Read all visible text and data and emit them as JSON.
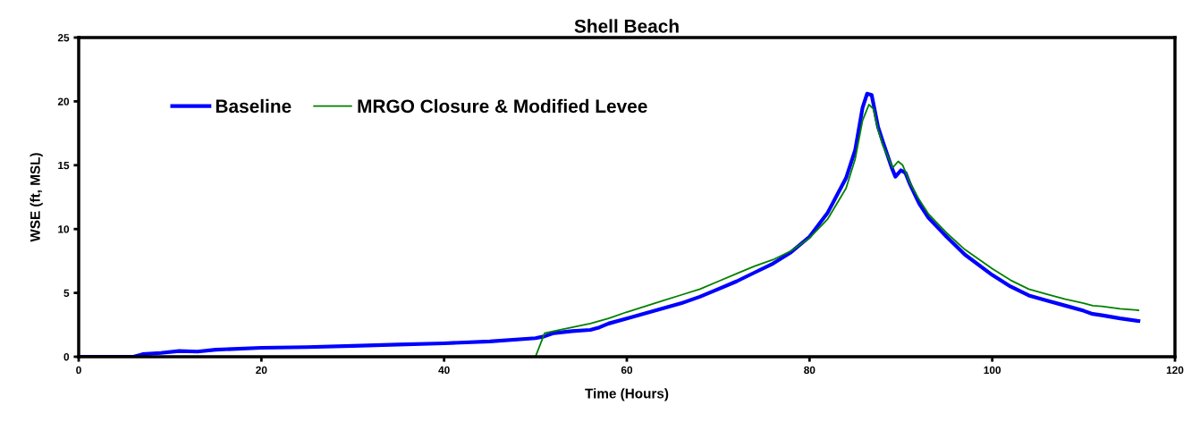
{
  "chart_data": {
    "type": "line",
    "title": "Shell Beach",
    "xlabel": "Time (Hours)",
    "ylabel": "WSE (ft, MSL)",
    "xlim": [
      0,
      120
    ],
    "xticks": [
      0,
      20,
      40,
      60,
      80,
      100,
      120
    ],
    "ylim": [
      0,
      25
    ],
    "yticks": [
      0,
      5,
      10,
      15,
      20,
      25
    ],
    "grid": false,
    "legend": "top left",
    "marker": "none",
    "line_style": "solid",
    "series": [
      {
        "name": "Baseline",
        "color": "#0000ff",
        "x": [
          0,
          6,
          7,
          9,
          11,
          13,
          15,
          20,
          25,
          30,
          35,
          40,
          45,
          50,
          51,
          52,
          54,
          56,
          57,
          58,
          60,
          62,
          64,
          66,
          68,
          70,
          72,
          74,
          76,
          78,
          80,
          82,
          84,
          85,
          85.8,
          86.3,
          86.8,
          87.5,
          88,
          89,
          89.4,
          90,
          90.5,
          91,
          92,
          93,
          95,
          97,
          100,
          102,
          104,
          106,
          108,
          110,
          111,
          112,
          114,
          116
        ],
        "values": [
          0,
          0,
          0.2,
          0.3,
          0.45,
          0.4,
          0.55,
          0.7,
          0.75,
          0.85,
          0.95,
          1.05,
          1.2,
          1.45,
          1.6,
          1.85,
          2.0,
          2.1,
          2.3,
          2.6,
          3.0,
          3.4,
          3.8,
          4.2,
          4.7,
          5.3,
          5.9,
          6.6,
          7.3,
          8.2,
          9.4,
          11.3,
          14.0,
          16.2,
          19.5,
          20.6,
          20.5,
          18.0,
          16.9,
          14.8,
          14.1,
          14.6,
          14.4,
          13.5,
          12.0,
          10.9,
          9.4,
          8.0,
          6.4,
          5.5,
          4.8,
          4.4,
          4.0,
          3.6,
          3.35,
          3.25,
          3.0,
          2.8
        ]
      },
      {
        "name": "MRGO Closure & Modified Levee",
        "color": "#008000",
        "x": [
          0,
          50,
          51,
          52,
          54,
          56,
          58,
          60,
          62,
          64,
          66,
          68,
          70,
          72,
          74,
          76,
          78,
          80,
          82,
          84,
          85,
          85.8,
          86.5,
          87,
          87.5,
          88,
          89.1,
          89.7,
          90.2,
          91,
          92,
          93,
          95,
          97,
          100,
          102,
          104,
          106,
          108,
          110,
          111,
          112,
          114,
          116
        ],
        "values": [
          0,
          0,
          1.85,
          2.0,
          2.3,
          2.6,
          3.0,
          3.5,
          3.95,
          4.4,
          4.85,
          5.3,
          5.9,
          6.5,
          7.1,
          7.6,
          8.3,
          9.3,
          10.8,
          13.2,
          15.5,
          18.5,
          19.75,
          19.4,
          17.8,
          16.6,
          14.8,
          15.3,
          15.0,
          13.6,
          12.3,
          11.2,
          9.7,
          8.4,
          6.9,
          6.0,
          5.3,
          4.9,
          4.5,
          4.2,
          4.0,
          3.95,
          3.75,
          3.64
        ]
      }
    ]
  }
}
